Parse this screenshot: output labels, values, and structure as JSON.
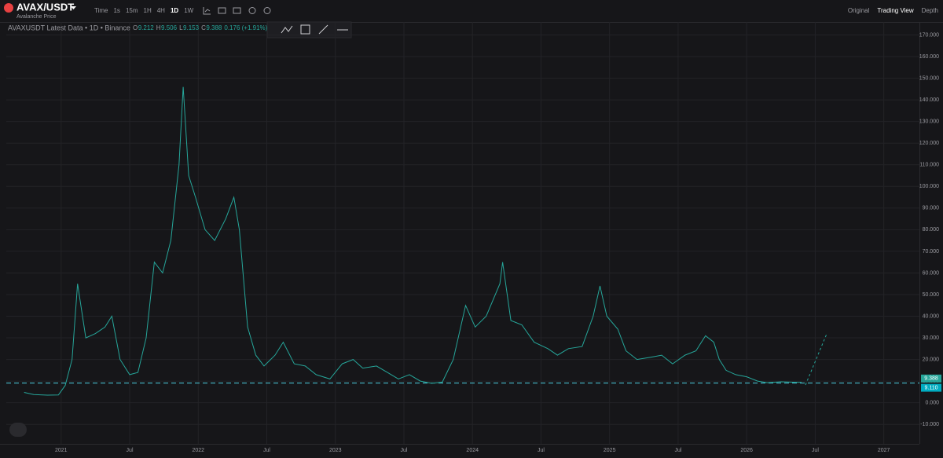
{
  "header": {
    "symbol": "AVAX/USDT",
    "subtitle": "Avalanche Price",
    "intervals": [
      "Time",
      "1s",
      "15m",
      "1H",
      "4H",
      "1D",
      "1W"
    ],
    "active_interval": 5,
    "views": [
      "Original",
      "Trading View",
      "Depth"
    ],
    "active_view": 1
  },
  "chart_data": {
    "type": "line",
    "title": "AVAXUSDT Latest Data • 1D • Binance",
    "quote": [
      "O",
      "9.212",
      "H",
      "9.506",
      "L",
      "9.153",
      "C",
      "9.388",
      "0.176 (+1.91%)"
    ],
    "x": [
      2020.73,
      2020.8,
      2020.9,
      2020.98,
      2021.03,
      2021.08,
      2021.12,
      2021.18,
      2021.25,
      2021.32,
      2021.37,
      2021.43,
      2021.5,
      2021.56,
      2021.62,
      2021.68,
      2021.74,
      2021.8,
      2021.86,
      2021.89,
      2021.93,
      2021.98,
      2022.05,
      2022.12,
      2022.2,
      2022.26,
      2022.3,
      2022.36,
      2022.42,
      2022.48,
      2022.56,
      2022.62,
      2022.7,
      2022.78,
      2022.86,
      2022.96,
      2023.05,
      2023.13,
      2023.2,
      2023.3,
      2023.38,
      2023.46,
      2023.54,
      2023.62,
      2023.7,
      2023.78,
      2023.86,
      2023.95,
      2024.02,
      2024.1,
      2024.2,
      2024.22,
      2024.28,
      2024.36,
      2024.45,
      2024.55,
      2024.62,
      2024.7,
      2024.8,
      2024.88,
      2024.93,
      2024.98,
      2025.06,
      2025.12,
      2025.2,
      2025.3,
      2025.38,
      2025.46,
      2025.55,
      2025.63,
      2025.7,
      2025.76,
      2025.8,
      2025.85,
      2025.92,
      2026.0,
      2026.08,
      2026.15,
      2026.25,
      2026.4
    ],
    "series": [
      {
        "name": "AVAXUSDT",
        "color": "#26a69a",
        "values": [
          4.8,
          3.8,
          3.5,
          3.6,
          8,
          20,
          55,
          30,
          32,
          35,
          40,
          20,
          13,
          14,
          30,
          65,
          60,
          75,
          110,
          146,
          105,
          95,
          80,
          75,
          85,
          95,
          80,
          35,
          22,
          17,
          22,
          28,
          18,
          17,
          13,
          11,
          18,
          20,
          16,
          17,
          14,
          11,
          13,
          10,
          9,
          9.5,
          20,
          45,
          35,
          40,
          55,
          65,
          38,
          36,
          28,
          25,
          22,
          25,
          26,
          40,
          54,
          40,
          34,
          24,
          20,
          21,
          22,
          18,
          22,
          24,
          31,
          28,
          20,
          15,
          13,
          12,
          10,
          9.3,
          9.7,
          9.388
        ]
      }
    ],
    "last_price": 9.388,
    "support": {
      "value": 9.11,
      "label": "9.110"
    },
    "xlim": [
      2020.6,
      2027.26
    ],
    "xticks": [
      {
        "value": 2021,
        "label": "2021"
      },
      {
        "value": 2021.5,
        "label": "Jul"
      },
      {
        "value": 2022,
        "label": "2022"
      },
      {
        "value": 2022.5,
        "label": "Jul"
      },
      {
        "value": 2023,
        "label": "2023"
      },
      {
        "value": 2023.5,
        "label": "Jul"
      },
      {
        "value": 2024,
        "label": "2024"
      },
      {
        "value": 2024.5,
        "label": "Jul"
      },
      {
        "value": 2025,
        "label": "2025"
      },
      {
        "value": 2025.5,
        "label": "Jul"
      },
      {
        "value": 2026,
        "label": "2026"
      },
      {
        "value": 2026.5,
        "label": "Jul"
      },
      {
        "value": 2027,
        "label": "2027"
      }
    ],
    "ylim": [
      -19,
      176
    ],
    "yticks": [
      {
        "value": -10,
        "label": "-10.000"
      },
      {
        "value": 0,
        "label": "0.000"
      },
      {
        "value": 10,
        "label": "10.000"
      },
      {
        "value": 20,
        "label": "20.000"
      },
      {
        "value": 30,
        "label": "30.000"
      },
      {
        "value": 40,
        "label": "40.000"
      },
      {
        "value": 50,
        "label": "50.000"
      },
      {
        "value": 60,
        "label": "60.000"
      },
      {
        "value": 70,
        "label": "70.000"
      },
      {
        "value": 80,
        "label": "80.000"
      },
      {
        "value": 90,
        "label": "90.000"
      },
      {
        "value": 100,
        "label": "100.000"
      },
      {
        "value": 110,
        "label": "110.000"
      },
      {
        "value": 120,
        "label": "120.000"
      },
      {
        "value": 130,
        "label": "130.000"
      },
      {
        "value": 140,
        "label": "140.000"
      },
      {
        "value": 150,
        "label": "150.000"
      },
      {
        "value": 160,
        "label": "160.000"
      },
      {
        "value": 170,
        "label": "170.000"
      }
    ],
    "grid": true
  }
}
